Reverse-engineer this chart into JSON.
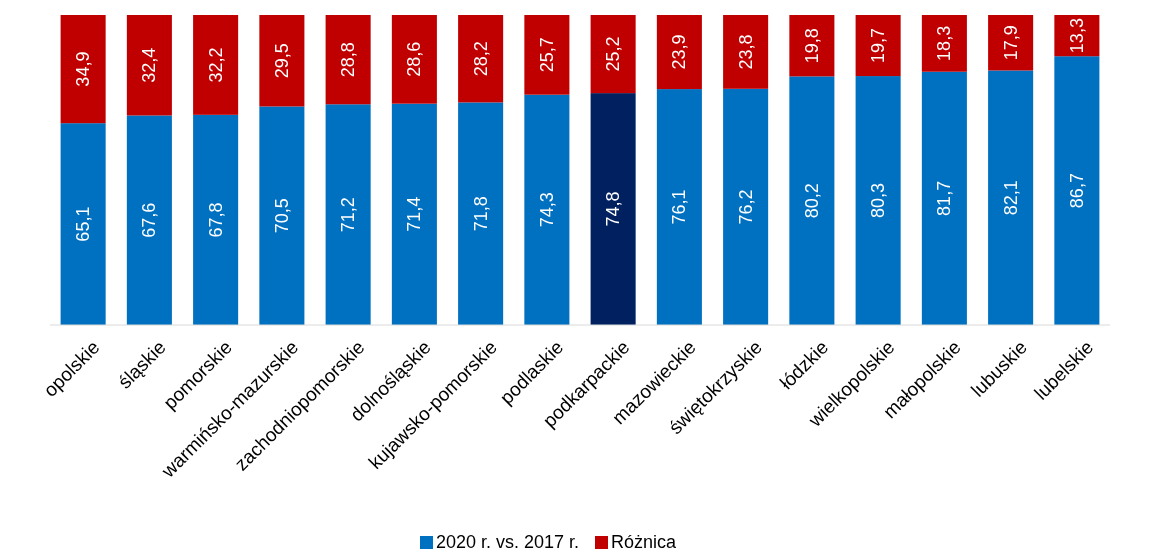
{
  "chart_data": {
    "type": "bar",
    "stacked": true,
    "legend": "bottom",
    "categories": [
      "opolskie",
      "śląskie",
      "pomorskie",
      "warmińsko-mazurskie",
      "zachodniopomorskie",
      "dolnośląskie",
      "kujawsko-pomorskie",
      "podlaskie",
      "podkarpackie",
      "mazowieckie",
      "świętokrzyskie",
      "łódzkie",
      "wielkopolskie",
      "małopolskie",
      "lubuskie",
      "lubelskie"
    ],
    "ylim": [
      0,
      100
    ],
    "series": [
      {
        "name": "2020 r. vs. 2017 r.",
        "color": "#0070c0",
        "colors": [
          "#0070c0",
          "#0070c0",
          "#0070c0",
          "#0070c0",
          "#0070c0",
          "#0070c0",
          "#0070c0",
          "#0070c0",
          "#002060",
          "#0070c0",
          "#0070c0",
          "#0070c0",
          "#0070c0",
          "#0070c0",
          "#0070c0",
          "#0070c0"
        ],
        "values": [
          65.1,
          67.6,
          67.8,
          70.5,
          71.2,
          71.4,
          71.8,
          74.3,
          74.8,
          76.1,
          76.2,
          80.2,
          80.3,
          81.7,
          82.1,
          86.7
        ],
        "value_labels": [
          "65,1",
          "67,6",
          "67,8",
          "70,5",
          "71,2",
          "71,4",
          "71,8",
          "74,3",
          "74,8",
          "76,1",
          "76,2",
          "80,2",
          "80,3",
          "81,7",
          "82,1",
          "86,7"
        ]
      },
      {
        "name": "Różnica",
        "color": "#c00000",
        "values": [
          34.9,
          32.4,
          32.2,
          29.5,
          28.8,
          28.6,
          28.2,
          25.7,
          25.2,
          23.9,
          23.8,
          19.8,
          19.7,
          18.3,
          17.9,
          13.3
        ],
        "value_labels": [
          "34,9",
          "32,4",
          "32,2",
          "29,5",
          "28,8",
          "28,6",
          "28,2",
          "25,7",
          "25,2",
          "23,9",
          "23,8",
          "19,8",
          "19,7",
          "18,3",
          "17,9",
          "13,3"
        ]
      }
    ]
  }
}
